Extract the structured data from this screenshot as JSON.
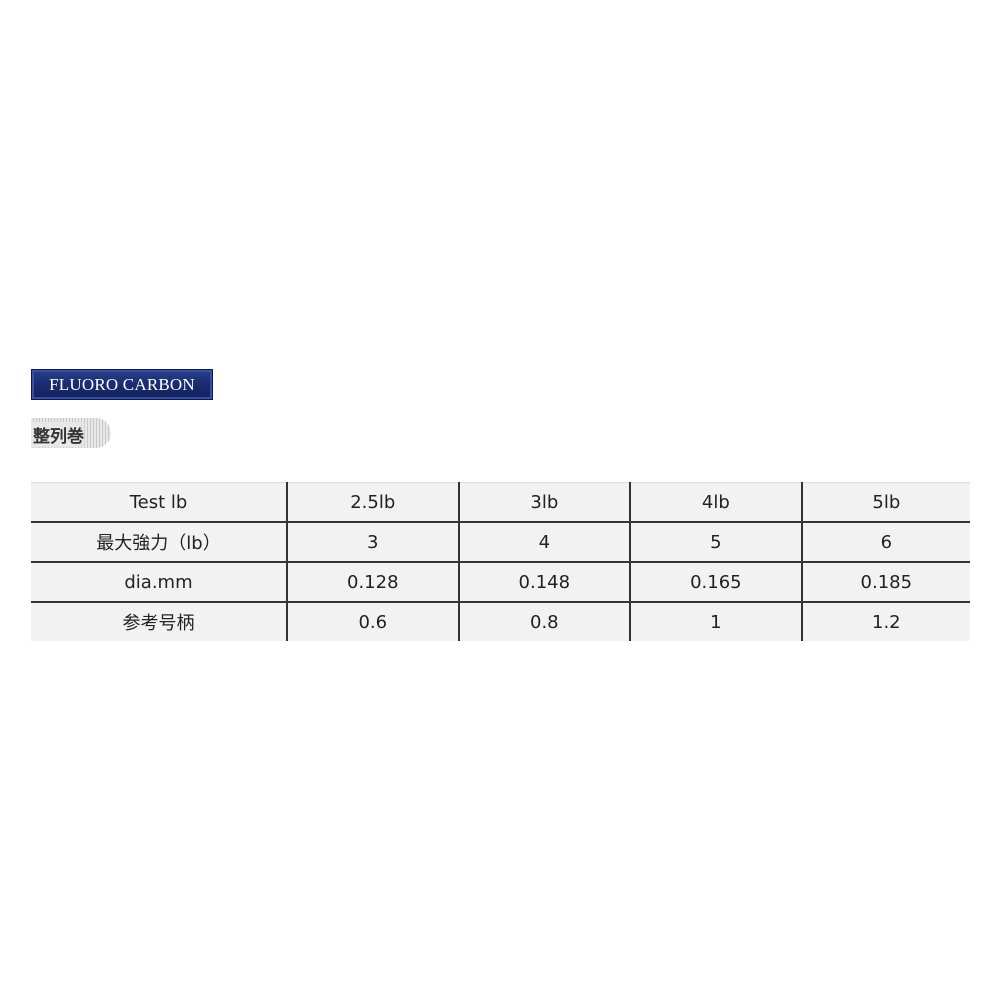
{
  "logo": {
    "brand": "FLUORO CARBON",
    "tag": "整列巻"
  },
  "table": {
    "rows": [
      [
        "Test lb",
        "2.5lb",
        "3lb",
        "4lb",
        "5lb"
      ],
      [
        "最大強力（lb）",
        "3",
        "4",
        "5",
        "6"
      ],
      [
        "dia.mm",
        "0.128",
        "0.148",
        "0.165",
        "0.185"
      ],
      [
        "参考号柄",
        "0.6",
        "0.8",
        "1",
        "1.2"
      ]
    ]
  }
}
